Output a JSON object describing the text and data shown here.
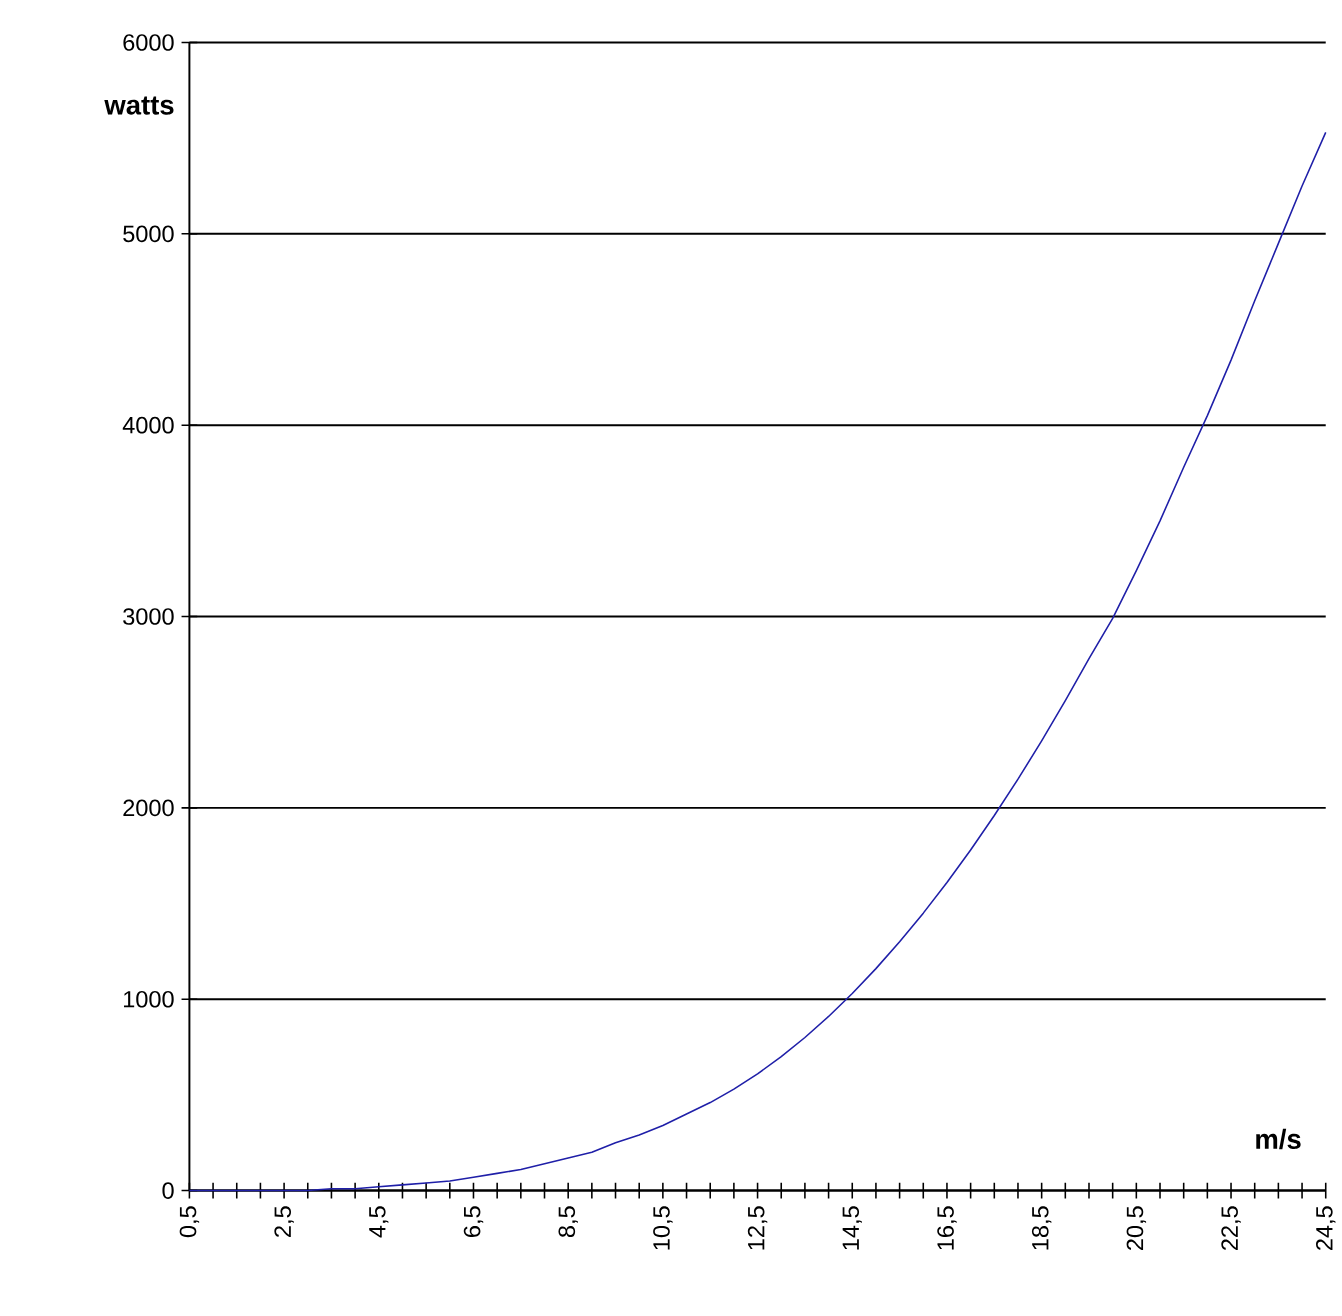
{
  "chart_data": {
    "type": "line",
    "xlabel": "m/s",
    "ylabel": "watts",
    "categories": [
      "0,5",
      null,
      null,
      null,
      "2,5",
      null,
      null,
      null,
      "4,5",
      null,
      null,
      null,
      "6,5",
      null,
      null,
      null,
      "8,5",
      null,
      null,
      null,
      "10,5",
      null,
      null,
      null,
      "12,5",
      null,
      null,
      null,
      "14,5",
      null,
      null,
      null,
      "16,5",
      null,
      null,
      null,
      "18,5",
      null,
      null,
      null,
      "20,5",
      null,
      null,
      null,
      "22,5",
      null,
      null,
      null,
      "24,5"
    ],
    "series": [
      {
        "color": "#1f1fa8",
        "values": [
          0,
          0,
          0,
          0,
          0,
          0,
          10,
          10,
          20,
          30,
          40,
          50,
          70,
          90,
          110,
          140,
          170,
          200,
          250,
          290,
          340,
          400,
          460,
          530,
          610,
          700,
          800,
          910,
          1030,
          1160,
          1300,
          1450,
          1610,
          1780,
          1960,
          2150,
          2350,
          2560,
          2780,
          2990,
          3240,
          3500,
          3780,
          4050,
          4340,
          4650,
          4950,
          5250,
          5530
        ]
      }
    ],
    "ylim": [
      0,
      6000
    ],
    "yticks": [
      0,
      1000,
      2000,
      3000,
      4000,
      5000,
      6000
    ],
    "grid": "y",
    "marker": "none",
    "line_style": "solid"
  }
}
